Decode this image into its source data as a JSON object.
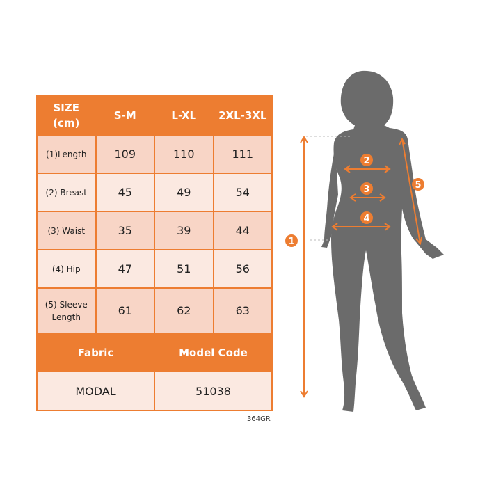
{
  "table": {
    "header": [
      "SIZE (cm)",
      "S-M",
      "L-XL",
      "2XL-3XL"
    ],
    "rows": [
      {
        "label": "(1)Length",
        "values": [
          "109",
          "110",
          "111"
        ]
      },
      {
        "label": "(2) Breast",
        "values": [
          "45",
          "49",
          "54"
        ]
      },
      {
        "label": "(3) Waist",
        "values": [
          "35",
          "39",
          "44"
        ]
      },
      {
        "label": "(4) Hip",
        "values": [
          "47",
          "51",
          "56"
        ]
      },
      {
        "label": "(5) Sleeve Length",
        "values": [
          "61",
          "62",
          "63"
        ]
      }
    ],
    "fabric_label": "Fabric",
    "model_code_label": "Model Code",
    "fabric_value": "MODAL",
    "model_code_value": "51038"
  },
  "product_code": "364GR",
  "figure": {
    "markers": [
      "1",
      "2",
      "3",
      "4",
      "5"
    ]
  },
  "colors": {
    "accent": "#ED7D31",
    "row_dark": "#F8D5C6",
    "row_light": "#FBE9E1",
    "silhouette": "#6B6B6B"
  }
}
